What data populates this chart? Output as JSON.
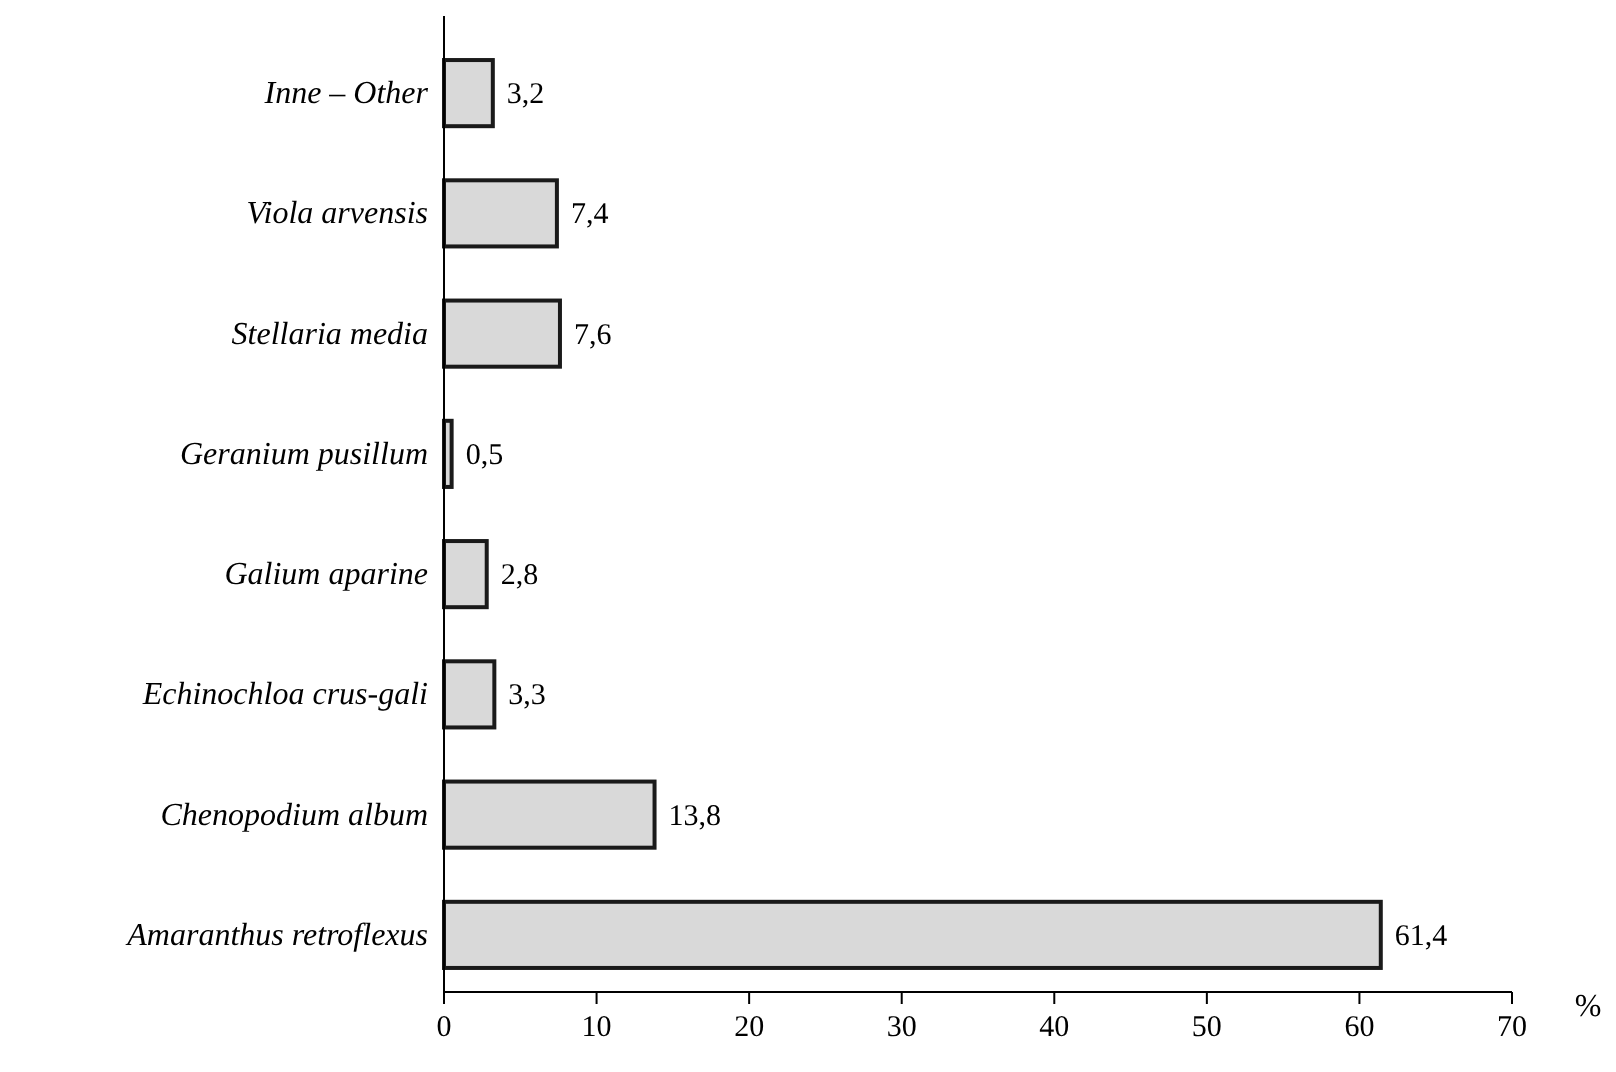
{
  "chart_data": {
    "type": "bar",
    "orientation": "horizontal",
    "xlabel": "%",
    "categories": [
      "Inne – Other",
      "Viola arvensis",
      "Stellaria media",
      "Geranium pusillum",
      "Galium aparine",
      "Echinochloa crus-gali",
      "Chenopodium album",
      "Amaranthus retroflexus"
    ],
    "values": [
      3.2,
      7.4,
      7.6,
      0.5,
      2.8,
      3.3,
      13.8,
      61.4
    ],
    "value_labels": [
      "3,2",
      "7,4",
      "7,6",
      "0,5",
      "2,8",
      "3,3",
      "13,8",
      "61,4"
    ],
    "color": "#d9d9d9",
    "xlim": [
      0,
      70
    ],
    "xticks": [
      0,
      10,
      20,
      30,
      40,
      50,
      60,
      70
    ],
    "grid": false
  }
}
